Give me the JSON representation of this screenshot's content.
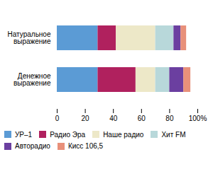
{
  "chart_data": {
    "type": "bar",
    "orientation": "horizontal",
    "stacked": true,
    "categories": [
      "Денежное\nвыражение",
      "Натуральное\nвыражение"
    ],
    "series": [
      {
        "name": "УР–1",
        "color": "#5b9bd5",
        "values": [
          29,
          29
        ]
      },
      {
        "name": "Радио Эра",
        "color": "#b0215e",
        "values": [
          27,
          13
        ]
      },
      {
        "name": "Наше радио",
        "color": "#ede8c8",
        "values": [
          14,
          28
        ]
      },
      {
        "name": "Хит FM",
        "color": "#b8d8da",
        "values": [
          10,
          13
        ]
      },
      {
        "name": "Авторадио",
        "color": "#6b3fa0",
        "values": [
          10,
          5
        ]
      },
      {
        "name": "Кисс 106,5",
        "color": "#e8907a",
        "values": [
          5,
          4
        ]
      }
    ],
    "xlim": [
      0,
      100
    ],
    "xticks": [
      0,
      20,
      40,
      60,
      80,
      {
        "value": 100,
        "label": "100%"
      }
    ],
    "grid": false,
    "legend": "bottom"
  }
}
